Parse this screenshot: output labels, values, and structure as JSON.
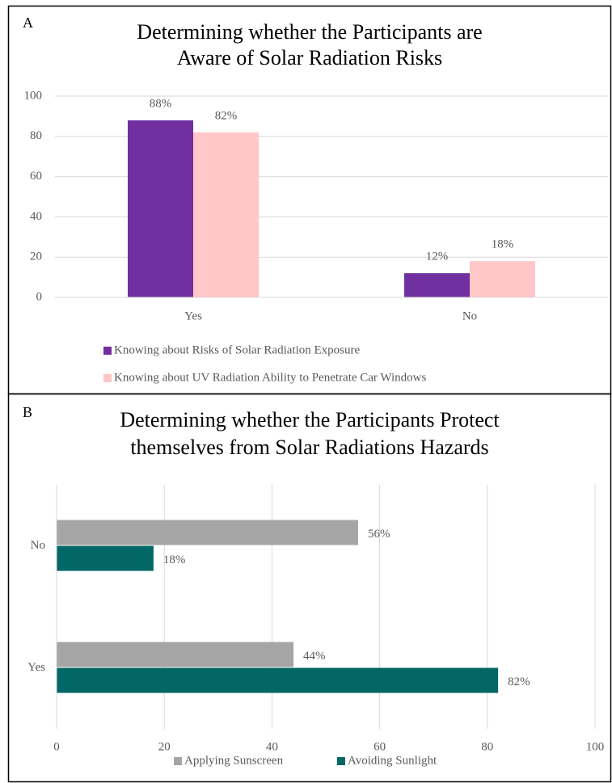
{
  "chart_data": [
    {
      "type": "bar",
      "orientation": "vertical",
      "panel": "A",
      "title": [
        "Determining whether the Participants are",
        "Aware of Solar Radiation Risks"
      ],
      "categories": [
        "Yes",
        "No"
      ],
      "series": [
        {
          "name": "Knowing about Risks of Solar Radiation Exposure",
          "color": "#7030a0",
          "values": [
            88,
            12
          ],
          "value_labels": [
            "88%",
            "12%"
          ]
        },
        {
          "name": "Knowing about UV Radiation Ability to Penetrate Car Windows",
          "color": "#ffc7c7",
          "values": [
            82,
            18
          ],
          "value_labels": [
            "82%",
            "18%"
          ]
        }
      ],
      "ylim": [
        0,
        100
      ],
      "yticks": [
        0,
        20,
        40,
        60,
        80,
        100
      ],
      "grid": true,
      "legend": "bottom"
    },
    {
      "type": "bar",
      "orientation": "horizontal",
      "panel": "B",
      "title": [
        "Determining whether the Participants Protect",
        "themselves from Solar Radiations Hazards"
      ],
      "categories": [
        "No",
        "Yes"
      ],
      "series": [
        {
          "name": "Applying Sunscreen",
          "color": "#a5a5a5",
          "values": [
            56,
            44
          ],
          "value_labels": [
            "56%",
            "44%"
          ]
        },
        {
          "name": "Avoiding Sunlight",
          "color": "#006666",
          "values": [
            18,
            82
          ],
          "value_labels": [
            "18%",
            "82%"
          ]
        }
      ],
      "xlim": [
        0,
        100
      ],
      "xticks": [
        0,
        20,
        40,
        60,
        80,
        100
      ],
      "grid": true,
      "legend": "bottom"
    }
  ]
}
